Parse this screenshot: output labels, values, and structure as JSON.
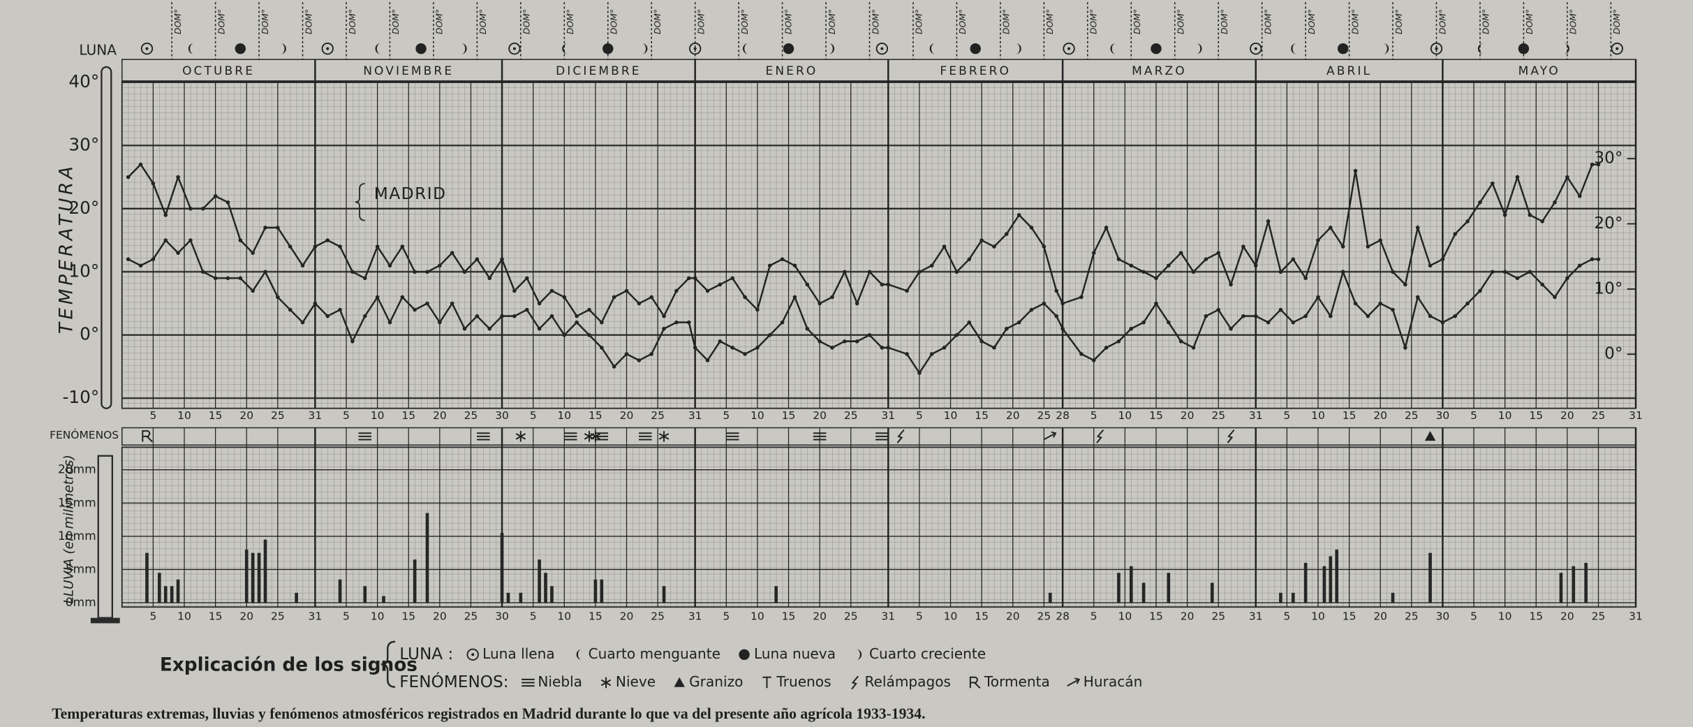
{
  "chart_data": [
    {
      "type": "line",
      "y_label": "TEMPERATURA",
      "annotation": "MADRID",
      "months": [
        "OCTUBRE",
        "NOVIEMBRE",
        "DICIEMBRE",
        "ENERO",
        "FEBRERO",
        "MARZO",
        "ABRIL",
        "MAYO"
      ],
      "xlim": [
        0,
        243
      ],
      "xticks": [
        {
          "value": 5,
          "label": "5"
        },
        {
          "value": 10,
          "label": "10"
        },
        {
          "value": 15,
          "label": "15"
        },
        {
          "value": 20,
          "label": "20"
        },
        {
          "value": 25,
          "label": "25"
        },
        {
          "value": 31,
          "label": "31"
        },
        {
          "value": 36,
          "label": "5"
        },
        {
          "value": 41,
          "label": "10"
        },
        {
          "value": 46,
          "label": "15"
        },
        {
          "value": 51,
          "label": "20"
        },
        {
          "value": 56,
          "label": "25"
        },
        {
          "value": 61,
          "label": "30"
        },
        {
          "value": 66,
          "label": "5"
        },
        {
          "value": 71,
          "label": "10"
        },
        {
          "value": 76,
          "label": "15"
        },
        {
          "value": 81,
          "label": "20"
        },
        {
          "value": 86,
          "label": "25"
        },
        {
          "value": 92,
          "label": "31"
        },
        {
          "value": 97,
          "label": "5"
        },
        {
          "value": 102,
          "label": "10"
        },
        {
          "value": 107,
          "label": "15"
        },
        {
          "value": 112,
          "label": "20"
        },
        {
          "value": 117,
          "label": "25"
        },
        {
          "value": 123,
          "label": "31"
        },
        {
          "value": 128,
          "label": "5"
        },
        {
          "value": 133,
          "label": "10"
        },
        {
          "value": 138,
          "label": "15"
        },
        {
          "value": 143,
          "label": "20"
        },
        {
          "value": 148,
          "label": "25"
        },
        {
          "value": 151,
          "label": "28"
        },
        {
          "value": 156,
          "label": "5"
        },
        {
          "value": 161,
          "label": "10"
        },
        {
          "value": 166,
          "label": "15"
        },
        {
          "value": 171,
          "label": "20"
        },
        {
          "value": 176,
          "label": "25"
        },
        {
          "value": 182,
          "label": "31"
        },
        {
          "value": 187,
          "label": "5"
        },
        {
          "value": 192,
          "label": "10"
        },
        {
          "value": 197,
          "label": "15"
        },
        {
          "value": 202,
          "label": "20"
        },
        {
          "value": 207,
          "label": "25"
        },
        {
          "value": 212,
          "label": "30"
        },
        {
          "value": 217,
          "label": "5"
        },
        {
          "value": 222,
          "label": "10"
        },
        {
          "value": 227,
          "label": "15"
        },
        {
          "value": 232,
          "label": "20"
        },
        {
          "value": 237,
          "label": "25"
        },
        {
          "value": 243,
          "label": "31"
        }
      ],
      "ylim": [
        -11.6,
        40.2
      ],
      "yticks": [
        {
          "value": 40,
          "label": "40°"
        },
        {
          "value": 30,
          "label": "30°"
        },
        {
          "value": 20,
          "label": "20°"
        },
        {
          "value": 10,
          "label": "10°"
        },
        {
          "value": 0,
          "label": "0°"
        },
        {
          "value": -10,
          "label": "-10°"
        }
      ],
      "y2lim": [
        -8.3,
        41.9
      ],
      "y2ticks": [
        {
          "value": 30,
          "label": "30°"
        },
        {
          "value": 20,
          "label": "20°"
        },
        {
          "value": 10,
          "label": "10°"
        },
        {
          "value": 0,
          "label": "0°"
        }
      ],
      "x": [
        1,
        3,
        5,
        7,
        9,
        11,
        13,
        15,
        17,
        19,
        21,
        23,
        25,
        27,
        29,
        31,
        33,
        35,
        37,
        39,
        41,
        43,
        45,
        47,
        49,
        51,
        53,
        55,
        57,
        59,
        61,
        63,
        65,
        67,
        69,
        71,
        73,
        75,
        77,
        79,
        81,
        83,
        85,
        87,
        89,
        91,
        92,
        94,
        96,
        98,
        100,
        102,
        104,
        106,
        108,
        110,
        112,
        114,
        116,
        118,
        120,
        122,
        123,
        126,
        128,
        130,
        132,
        134,
        136,
        138,
        140,
        142,
        144,
        146,
        148,
        150,
        151,
        154,
        156,
        158,
        160,
        162,
        164,
        166,
        168,
        170,
        172,
        174,
        176,
        178,
        180,
        182,
        184,
        186,
        188,
        190,
        192,
        194,
        196,
        198,
        200,
        202,
        204,
        206,
        208,
        210,
        212,
        214,
        216,
        218,
        220,
        222,
        224,
        226,
        228,
        230,
        232,
        234,
        236,
        237
      ],
      "series": [
        {
          "color": "#242424",
          "values": [
            25,
            27,
            24,
            19,
            25,
            20,
            20,
            22,
            21,
            15,
            13,
            17,
            17,
            14,
            11,
            14,
            15,
            14,
            10,
            9,
            14,
            11,
            14,
            10,
            10,
            11,
            13,
            10,
            12,
            9,
            12,
            7,
            9,
            5,
            7,
            6,
            3,
            4,
            2,
            6,
            7,
            5,
            6,
            3,
            7,
            9,
            9,
            7,
            8,
            9,
            6,
            4,
            11,
            12,
            11,
            8,
            5,
            6,
            10,
            5,
            10,
            8,
            8,
            7,
            10,
            11,
            14,
            10,
            12,
            15,
            14,
            16,
            19,
            17,
            14,
            7,
            5,
            6,
            13,
            17,
            12,
            11,
            10,
            9,
            11,
            13,
            10,
            12,
            13,
            8,
            14,
            11,
            18,
            10,
            12,
            9,
            15,
            17,
            14,
            26,
            14,
            15,
            10,
            8,
            17,
            11,
            12,
            16,
            18,
            21,
            24,
            19,
            25,
            19,
            18,
            21,
            25,
            22,
            27,
            27
          ]
        },
        {
          "color": "#242424",
          "values": [
            12,
            11,
            12,
            15,
            13,
            15,
            10,
            9,
            9,
            9,
            7,
            10,
            6,
            4,
            2,
            5,
            3,
            4,
            -1,
            3,
            6,
            2,
            6,
            4,
            5,
            2,
            5,
            1,
            3,
            1,
            3,
            3,
            4,
            1,
            3,
            0,
            2,
            0,
            -2,
            -5,
            -3,
            -4,
            -3,
            1,
            2,
            2,
            -2,
            -4,
            -1,
            -2,
            -3,
            -2,
            0,
            2,
            6,
            1,
            -1,
            -2,
            -1,
            -1,
            0,
            -2,
            -2,
            -3,
            -6,
            -3,
            -2,
            0,
            2,
            -1,
            -2,
            1,
            2,
            4,
            5,
            3,
            1,
            -3,
            -4,
            -2,
            -1,
            1,
            2,
            5,
            2,
            -1,
            -2,
            3,
            4,
            1,
            3,
            3,
            2,
            4,
            2,
            3,
            6,
            3,
            10,
            5,
            3,
            5,
            4,
            -2,
            6,
            3,
            2,
            3,
            5,
            7,
            10,
            10,
            9,
            10,
            8,
            6,
            9,
            11,
            12,
            12
          ]
        }
      ]
    },
    {
      "type": "bar",
      "y_label": "LLUVIA (en milímetros)",
      "color": "#262626",
      "ylim": [
        -0.65,
        23.4
      ],
      "yticks": [
        {
          "value": 20,
          "label": "20mm"
        },
        {
          "value": 15,
          "label": "15mm"
        },
        {
          "value": 10,
          "label": "10mm"
        },
        {
          "value": 5,
          "label": "5mm"
        },
        {
          "value": 0,
          "label": "0mm"
        }
      ],
      "x": [
        4,
        6,
        7,
        8,
        9,
        20,
        21,
        22,
        23,
        28,
        35,
        39,
        42,
        47,
        49,
        61,
        62,
        64,
        67,
        68,
        69,
        76,
        77,
        87,
        105,
        149,
        160,
        162,
        164,
        168,
        175,
        186,
        188,
        190,
        193,
        194,
        195,
        204,
        210,
        231,
        233,
        235
      ],
      "values": [
        7.5,
        4.5,
        2.5,
        2.5,
        3.5,
        8,
        7.5,
        7.5,
        9.5,
        1.5,
        3.5,
        2.5,
        1,
        6.5,
        13.5,
        10.5,
        1.5,
        1.5,
        6.5,
        4.5,
        2.5,
        3.5,
        3.5,
        2.5,
        2.5,
        1.5,
        4.5,
        5.5,
        3,
        4.5,
        3,
        1.5,
        1.5,
        6,
        5.5,
        7,
        8,
        1.5,
        7.5,
        4.5,
        5.5,
        6
      ]
    }
  ],
  "sundays": {
    "label": "DOM°",
    "days": [
      8,
      15,
      22,
      29,
      36,
      43,
      50,
      57,
      64,
      71,
      78,
      85,
      92,
      99,
      106,
      113,
      120,
      127,
      134,
      141,
      148,
      155,
      162,
      169,
      176,
      183,
      190,
      197,
      204,
      211,
      218,
      225,
      232,
      239
    ]
  },
  "moon": {
    "label": "LUNA",
    "legend_label": "LUNA :",
    "phases": [
      {
        "text": "Luna llena",
        "days": [
          4,
          33,
          63,
          92,
          122,
          152,
          182,
          211,
          240
        ]
      },
      {
        "text": "Cuarto menguante",
        "days": [
          11,
          41,
          71,
          100,
          130,
          159,
          188,
          218
        ]
      },
      {
        "text": "Luna nueva",
        "days": [
          19,
          48,
          78,
          107,
          137,
          166,
          196,
          225
        ]
      },
      {
        "text": "Cuarto creciente",
        "days": [
          26,
          55,
          84,
          114,
          144,
          173,
          203,
          232
        ]
      }
    ]
  },
  "phenomena": {
    "label": "FENÓMENOS",
    "legend_label": "FENÓMENOS:",
    "items": [
      {
        "text": "Niebla",
        "days": [
          39,
          58,
          72,
          77,
          84,
          98,
          112,
          122
        ]
      },
      {
        "text": "Nieve",
        "days": [
          64,
          75,
          76,
          87
        ]
      },
      {
        "text": "Granizo",
        "days": [
          210
        ]
      },
      {
        "text": "Truenos",
        "days": []
      },
      {
        "text": "Relámpagos",
        "days": [
          125,
          157,
          178
        ]
      },
      {
        "text": "Tormenta",
        "days": [
          4
        ]
      },
      {
        "text": "Huracán",
        "days": [
          149
        ]
      }
    ]
  },
  "legend_title": "Explicación de los signos",
  "caption": "Temperaturas extremas, lluvias y fenómenos atmosféricos registrados en Madrid durante lo que va del presente año agrícola 1933-1934."
}
